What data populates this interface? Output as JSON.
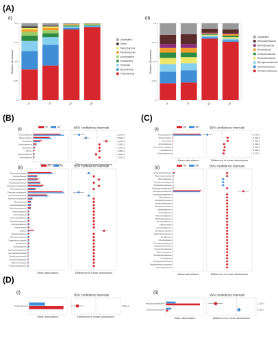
{
  "figure": {
    "panels": {
      "A": "(A)",
      "B": "(B)",
      "C": "(C)",
      "D": "(D)"
    },
    "subs": {
      "i": "(i)",
      "ii": "(ii)"
    }
  },
  "colors": {
    "red": "#d7262c",
    "blue": "#3f8ed6",
    "lightblue": "#86cfef",
    "green": "#2e8b43",
    "orange": "#f39c2b",
    "yellow": "#ede86a",
    "purple": "#8b2d7a",
    "darkgray": "#333333",
    "gray": "#9a9a9a",
    "teal": "#22a6a3",
    "lightgreen": "#9ccc65",
    "brown": "#5a2b2b"
  },
  "chart_data": [
    {
      "id": "A-i",
      "type": "bar",
      "stacked": true,
      "ylabel": "Relative Abundance",
      "ylim": [
        0,
        1
      ],
      "yticks": [
        "0",
        "0.25",
        "0.5",
        "0.75",
        "1.0"
      ],
      "categories": [
        "D0",
        "D8",
        "W0",
        "W8"
      ],
      "legend_position": "right",
      "series": [
        {
          "name": "Proteobacteria",
          "color": "#d7262c",
          "values": [
            0.4,
            0.45,
            0.92,
            0.95
          ]
        },
        {
          "name": "Bacteroidetes",
          "color": "#3f8ed6",
          "values": [
            0.24,
            0.27,
            0.02,
            0.01
          ]
        },
        {
          "name": "Firmicutes",
          "color": "#86cfef",
          "values": [
            0.13,
            0.1,
            0.02,
            0.01
          ]
        },
        {
          "name": "Fusobacteria",
          "color": "#2e8b43",
          "values": [
            0.07,
            0.05,
            0.01,
            0.01
          ]
        },
        {
          "name": "Actinobacteria",
          "color": "#9ccc65",
          "values": [
            0.05,
            0.04,
            0.01,
            0.01
          ]
        },
        {
          "name": "Planctomycetes",
          "color": "#f39c2b",
          "values": [
            0.03,
            0.03,
            0.01,
            0.005
          ]
        },
        {
          "name": "Patescibacteria",
          "color": "#ede86a",
          "values": [
            0.02,
            0.02,
            0.0,
            0.0
          ]
        },
        {
          "name": "Others",
          "color": "#333333",
          "values": [
            0.02,
            0.01,
            0.0,
            0.0
          ]
        },
        {
          "name": "Unclassified",
          "color": "#9a9a9a",
          "values": [
            0.04,
            0.03,
            0.01,
            0.005
          ]
        }
      ]
    },
    {
      "id": "A-ii",
      "type": "bar",
      "stacked": true,
      "ylabel": "Relative Abundance",
      "ylim": [
        0,
        1
      ],
      "yticks": [
        "0",
        "0.25",
        "0.5",
        "0.75",
        "1.0"
      ],
      "categories": [
        "D0",
        "D8",
        "W0",
        "W8"
      ],
      "legend_position": "right",
      "series": [
        {
          "name": "Pseudomonadaceae",
          "color": "#d7262c",
          "values": [
            0.22,
            0.23,
            0.8,
            0.76
          ]
        },
        {
          "name": "Flavobacteriaceae",
          "color": "#3f8ed6",
          "values": [
            0.15,
            0.16,
            0.02,
            0.02
          ]
        },
        {
          "name": "Sphingomonadaceae",
          "color": "#86cfef",
          "values": [
            0.1,
            0.09,
            0.02,
            0.02
          ]
        },
        {
          "name": "Rhodobacteraceae",
          "color": "#ede86a",
          "values": [
            0.08,
            0.08,
            0.01,
            0.02
          ]
        },
        {
          "name": "Comamonadaceae",
          "color": "#2e8b43",
          "values": [
            0.07,
            0.06,
            0.01,
            0.02
          ]
        },
        {
          "name": "Moraxellaceae",
          "color": "#f39c2b",
          "values": [
            0.06,
            0.06,
            0.01,
            0.02
          ]
        },
        {
          "name": "Burkholderiaceae",
          "color": "#8b2d7a",
          "values": [
            0.05,
            0.05,
            0.01,
            0.01
          ]
        },
        {
          "name": "Enterobacteriaceae",
          "color": "#5a2b2b",
          "values": [
            0.12,
            0.13,
            0.05,
            0.05
          ]
        },
        {
          "name": "Unclassified",
          "color": "#9a9a9a",
          "values": [
            0.15,
            0.14,
            0.07,
            0.08
          ]
        }
      ]
    },
    {
      "id": "B-i",
      "type": "bar",
      "orientation": "horizontal",
      "title": "95% confidence intervals",
      "xlabel": "Mean abundance",
      "xlabel_ci": "Difference in mean abundance",
      "legend": [
        "D0",
        "D8"
      ],
      "categories": [
        "Proteobacteria",
        "Bacteroidetes",
        "Firmicutes",
        "Actinobacteria",
        "Chloroflexi",
        "Others",
        "Patescibacteria",
        "Acidobacteria"
      ],
      "series": [
        {
          "name": "D0",
          "color": "#d7262c",
          "values": [
            0.4,
            0.24,
            0.13,
            0.05,
            0.03,
            0.02,
            0.02,
            0.02
          ]
        },
        {
          "name": "D8",
          "color": "#3f8ed6",
          "values": [
            0.45,
            0.27,
            0.1,
            0.04,
            0.02,
            0.01,
            0.02,
            0.01
          ]
        }
      ],
      "ci": [
        -0.05,
        -0.03,
        0.03,
        0.01,
        0.01,
        0.01,
        0.0,
        0.01
      ],
      "pvalues": [
        "2.14E-3",
        "8.92E-3",
        "3.27E-2",
        "1.03E-3",
        "1.75E-3",
        "3.08E-2",
        "2.93E-2",
        "1.13E-3"
      ]
    },
    {
      "id": "B-ii",
      "type": "bar",
      "orientation": "horizontal",
      "title": "95% confidence intervals",
      "xlabel": "Mean abundance",
      "xlabel_ci": "Difference in mean abundance",
      "legend": [
        "D0",
        "D8"
      ],
      "categories": [
        "Flavobacteriaceae",
        "Moraxellaceae",
        "Comamonadaceae",
        "Rhodobacteraceae",
        "Sphingomonadaceae",
        "Burkholderiaceae",
        "Pseudomonadaceae",
        "Enterobacteriaceae",
        "Xanthomonadaceae",
        "Rhizobiaceae",
        "Caulobacteraceae",
        "Microbacteriaceae",
        "Weeksellaceae",
        "Nocardiaceae",
        "Aeromonadaceae",
        "Chitinophagaceae",
        "Shewanellaceae",
        "Vibrionaceae",
        "Listeria",
        "Lactobacillaceae",
        "Streptococcaceae",
        "Staphylococcaceae",
        "Bacillaceae",
        "Clostridiaceae",
        "Erysipelotrichaceae",
        "Corynebacteriaceae",
        "Carnobacteriaceae",
        "Leuconostocaceae",
        "Micrococcaceae",
        "Intrasporangiaceae"
      ],
      "series": [
        {
          "name": "D0",
          "color": "#d7262c",
          "values": [
            0.15,
            0.06,
            0.07,
            0.08,
            0.1,
            0.05,
            0.22,
            0.12,
            0.03,
            0.02,
            0.02,
            0.02,
            0.01,
            0.01,
            0.01,
            0.01,
            0.01,
            0.01,
            0.04,
            0.01,
            0.01,
            0.01,
            0.01,
            0.01,
            0.005,
            0.005,
            0.005,
            0.005,
            0.005,
            0.005
          ]
        },
        {
          "name": "D8",
          "color": "#3f8ed6",
          "values": [
            0.16,
            0.06,
            0.06,
            0.08,
            0.09,
            0.05,
            0.23,
            0.13,
            0.03,
            0.02,
            0.02,
            0.02,
            0.01,
            0.01,
            0.01,
            0.01,
            0.01,
            0.01,
            0.01,
            0.01,
            0.01,
            0.01,
            0.01,
            0.01,
            0.005,
            0.005,
            0.005,
            0.005,
            0.005,
            0.005
          ]
        }
      ],
      "ci": [
        -0.01,
        0.0,
        0.01,
        0.0,
        0.01,
        0.0,
        -0.03,
        -0.01,
        0.0,
        0.0,
        0.0,
        0.0,
        0.0,
        0.0,
        0.0,
        0.0,
        0.0,
        0.0,
        0.02,
        0.0,
        0.0,
        0.0,
        0.0,
        0.0,
        0.0,
        0.0,
        0.0,
        0.0,
        0.0,
        0.0
      ]
    },
    {
      "id": "C-i",
      "type": "bar",
      "orientation": "horizontal",
      "title": "95% confidence intervals",
      "xlabel": "Mean abundance",
      "xlabel_ci": "Difference in mean abundance",
      "legend": [
        "W0",
        "W8"
      ],
      "categories": [
        "Proteobacteria",
        "Bacteroidetes",
        "Firmicutes",
        "Actinobacteria",
        "Gemmatimonadetes",
        "Fusobacteria",
        "Patescibacteria"
      ],
      "series": [
        {
          "name": "W0",
          "color": "#d7262c",
          "values": [
            0.92,
            0.02,
            0.02,
            0.01,
            0.01,
            0.01,
            0.005
          ]
        },
        {
          "name": "W8",
          "color": "#3f8ed6",
          "values": [
            0.95,
            0.01,
            0.01,
            0.01,
            0.005,
            0.005,
            0.002
          ]
        }
      ],
      "ci": [
        -0.03,
        0.01,
        0.01,
        0.003,
        0.004,
        0.003,
        0.002
      ],
      "pvalues": [
        "2.94E-3",
        "1.09E-2",
        "6.09E-3",
        "3.34E-2",
        "1.04E-3",
        "5.38E-3",
        "6.47E-2"
      ]
    },
    {
      "id": "C-ii",
      "type": "bar",
      "orientation": "horizontal",
      "title": "95% confidence intervals",
      "xlabel": "Mean abundance",
      "xlabel_ci": "Difference in mean abundance",
      "legend": [
        "W0",
        "W8"
      ],
      "categories": [
        "Enterobacteriaceae",
        "Flavobacteriaceae",
        "Moraxellaceae",
        "Comamonadaceae",
        "Rhodobacteraceae",
        "Sphingomonadaceae",
        "Pseudomonadaceae",
        "Xanthomonadaceae",
        "Rhizobiaceae",
        "Caulobacteraceae",
        "Burkholderiaceae",
        "Microbacteriaceae",
        "Weeksellaceae",
        "Nocardiaceae",
        "Aeromonadaceae",
        "Chitinophagaceae",
        "Shewanellaceae",
        "Vibrionaceae",
        "Lactobacillaceae",
        "Streptococcaceae",
        "Staphylococcaceae",
        "Bacillaceae",
        "Clostridiaceae",
        "Corynebacteriaceae",
        "Carnobacteriaceae",
        "Leuconostocaceae",
        "Micrococcaceae",
        "Intrasporangiaceae",
        "Listeriaceae",
        "Erysipelotrichaceae",
        "Peptostreptococcaceae",
        "Lachnospiraceae"
      ],
      "series": [
        {
          "name": "W0",
          "color": "#d7262c",
          "values": [
            0.05,
            0.02,
            0.01,
            0.01,
            0.01,
            0.02,
            0.8,
            0.01,
            0.005,
            0.005,
            0.01,
            0.005,
            0.005,
            0.005,
            0.005,
            0.005,
            0.005,
            0.005,
            0.005,
            0.005,
            0.005,
            0.005,
            0.005,
            0.005,
            0.005,
            0.005,
            0.005,
            0.005,
            0.005,
            0.005,
            0.005,
            0.005
          ]
        },
        {
          "name": "W8",
          "color": "#3f8ed6",
          "values": [
            0.05,
            0.02,
            0.02,
            0.02,
            0.02,
            0.02,
            0.76,
            0.01,
            0.005,
            0.005,
            0.01,
            0.005,
            0.005,
            0.005,
            0.005,
            0.005,
            0.005,
            0.005,
            0.005,
            0.005,
            0.005,
            0.005,
            0.005,
            0.005,
            0.005,
            0.005,
            0.005,
            0.005,
            0.005,
            0.005,
            0.005,
            0.005
          ]
        }
      ],
      "ci": [
        0.0,
        0.0,
        -0.01,
        -0.01,
        -0.01,
        0.0,
        0.04,
        0.0,
        0.0,
        0.0,
        0.0,
        0.0,
        0.0,
        0.0,
        0.0,
        0.0,
        0.0,
        0.0,
        0.0,
        0.0,
        0.0,
        0.0,
        0.0,
        0.0,
        0.0,
        0.0,
        0.0,
        0.0,
        0.0,
        0.0,
        0.0,
        0.0
      ]
    },
    {
      "id": "D-i",
      "type": "bar",
      "orientation": "horizontal",
      "title": "95% confidence intervals",
      "xlabel": "Mean abundance",
      "xlabel_ci": "Difference in mean abundance",
      "categories": [
        "Proteobacteria"
      ],
      "series": [
        {
          "name": "D",
          "color": "#3f8ed6",
          "values": [
            0.43
          ]
        },
        {
          "name": "W",
          "color": "#d7262c",
          "values": [
            0.93
          ]
        }
      ],
      "ci": [
        -0.5
      ],
      "pvalues": [
        "1.56E-4"
      ]
    },
    {
      "id": "D-ii",
      "type": "bar",
      "orientation": "horizontal",
      "title": "95% confidence intervals",
      "xlabel": "Mean abundance",
      "xlabel_ci": "Difference in mean abundance",
      "categories": [
        "Pseudomonadaceae",
        "Enterobacteriaceae"
      ],
      "series": [
        {
          "name": "D",
          "color": "#3f8ed6",
          "values": [
            0.22,
            0.12
          ]
        },
        {
          "name": "W",
          "color": "#d7262c",
          "values": [
            0.78,
            0.05
          ]
        }
      ],
      "ci": [
        -0.56,
        0.07
      ],
      "pvalues": [
        "2.21E-3",
        "3.11E-3"
      ]
    }
  ]
}
